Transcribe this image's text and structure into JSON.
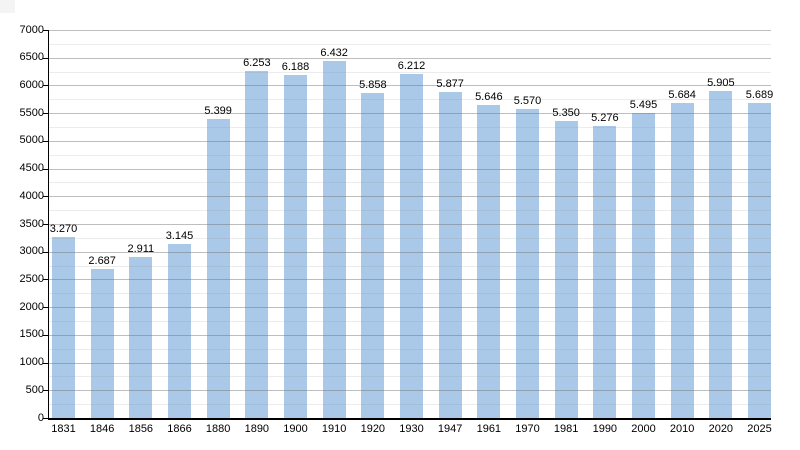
{
  "page": {
    "background_color": "#ffffff"
  },
  "chart_data": {
    "type": "bar",
    "title": "",
    "xlabel": "",
    "ylabel": "",
    "categories": [
      "1831",
      "1846",
      "1856",
      "1866",
      "1880",
      "1890",
      "1900",
      "1910",
      "1920",
      "1930",
      "1947",
      "1961",
      "1970",
      "1981",
      "1990",
      "2000",
      "2010",
      "2020",
      "2025"
    ],
    "values": [
      3270,
      2687,
      2911,
      3145,
      5399,
      6253,
      6188,
      6432,
      5858,
      6212,
      5877,
      5646,
      5570,
      5350,
      5276,
      5495,
      5684,
      5905,
      5689
    ],
    "value_labels": [
      "3.270",
      "2.687",
      "2.911",
      "3.145",
      "5.399",
      "6.253",
      "6.188",
      "6.432",
      "5.858",
      "6.212",
      "5.877",
      "5.646",
      "5.570",
      "5.350",
      "5.276",
      "5.495",
      "5.684",
      "5.905",
      "5.689"
    ],
    "ylim": [
      0,
      7000
    ],
    "y_ticks": [
      0,
      500,
      1000,
      1500,
      2000,
      2500,
      3000,
      3500,
      4000,
      4500,
      5000,
      5500,
      6000,
      6500,
      7000
    ],
    "y_minor_step": 250,
    "grid": "on",
    "legend": "none",
    "colors": {
      "bar_fill": "#aac8e8",
      "major_gridline": "#b0b0b0",
      "minor_gridline": "#e6e6e6",
      "axis": "#000000",
      "label_text": "#000000",
      "background": "#ffffff"
    }
  }
}
